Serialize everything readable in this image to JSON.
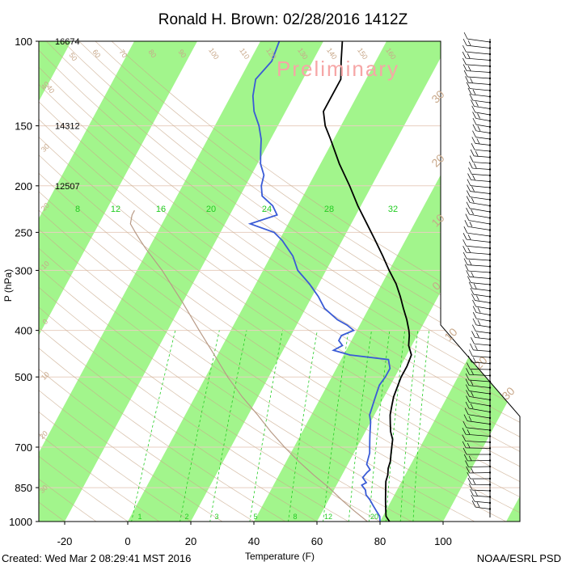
{
  "title": "Ronald H. Brown: 02/28/2016 1412Z",
  "footer_left": "Created: Wed Mar  2 08:29:41 MST 2016",
  "footer_right": "NOAA/ESRL PSD",
  "watermark": "Preliminary",
  "chart_data": {
    "type": "line",
    "subtype": "skew-t log-p sounding",
    "xlabel": "Temperature (F)",
    "ylabel": "P (hPa)",
    "x_ticks": [
      "-20",
      "0",
      "20",
      "40",
      "60",
      "80",
      "100"
    ],
    "y_ticks": [
      "100",
      "150",
      "200",
      "250",
      "300",
      "400",
      "500",
      "700",
      "850",
      "1000"
    ],
    "xlim_at_1000hPa": [
      -29,
      133
    ],
    "ylim": [
      1000,
      100
    ],
    "y_scale": "log",
    "height_labels": [
      {
        "pressure": 100,
        "text": "16674"
      },
      {
        "pressure": 150,
        "text": "14312"
      },
      {
        "pressure": 200,
        "text": "12507"
      }
    ],
    "mixing_ratio_labels_top": [
      "8",
      "12",
      "16",
      "20",
      "24",
      "28",
      "32"
    ],
    "mixing_ratio_labels_bottom": [
      "1",
      "2",
      "3",
      "5",
      "8",
      "12",
      "20"
    ],
    "adiabat_labels_top": [
      "40",
      "50",
      "60",
      "70",
      "80",
      "90",
      "100",
      "110",
      "120",
      "130",
      "140",
      "150",
      "160"
    ],
    "right_labels": [
      "30",
      "20",
      "10",
      "0",
      "10",
      "20",
      "30"
    ],
    "left_labels": [
      "40",
      "30",
      "20",
      "10",
      "0",
      "10",
      "20",
      "30"
    ],
    "colors": {
      "temperature": "#000000",
      "dewpoint": "#3a5bd6",
      "isotherm_band": "#a2f58c",
      "dry_adiabat": "#c8a88a",
      "mixing_ratio": "#22cc22",
      "watermark": "#f6a6a6"
    },
    "series": [
      {
        "name": "Temperature",
        "points": [
          [
            1000,
            83
          ],
          [
            975,
            81
          ],
          [
            950,
            80
          ],
          [
            925,
            79
          ],
          [
            900,
            78
          ],
          [
            875,
            77
          ],
          [
            850,
            76
          ],
          [
            825,
            75
          ],
          [
            800,
            74.5
          ],
          [
            775,
            73.5
          ],
          [
            750,
            73
          ],
          [
            725,
            72
          ],
          [
            700,
            71
          ],
          [
            675,
            70
          ],
          [
            650,
            68
          ],
          [
            625,
            66.5
          ],
          [
            600,
            65
          ],
          [
            575,
            64
          ],
          [
            550,
            63
          ],
          [
            525,
            62.5
          ],
          [
            500,
            62
          ],
          [
            475,
            62
          ],
          [
            450,
            61.5
          ],
          [
            430,
            59
          ],
          [
            410,
            57.5
          ],
          [
            400,
            56.5
          ],
          [
            380,
            54
          ],
          [
            360,
            51
          ],
          [
            340,
            48
          ],
          [
            320,
            44.5
          ],
          [
            300,
            40
          ],
          [
            280,
            35.5
          ],
          [
            260,
            30.5
          ],
          [
            240,
            25
          ],
          [
            220,
            19
          ],
          [
            200,
            13
          ],
          [
            180,
            6
          ],
          [
            160,
            -1
          ],
          [
            150,
            -5
          ],
          [
            140,
            -8
          ],
          [
            130,
            -8
          ],
          [
            120,
            -8
          ],
          [
            110,
            -11
          ],
          [
            100,
            -14
          ]
        ]
      },
      {
        "name": "Dewpoint",
        "points": [
          [
            1000,
            80
          ],
          [
            975,
            79
          ],
          [
            950,
            77
          ],
          [
            925,
            75
          ],
          [
            900,
            73
          ],
          [
            880,
            71
          ],
          [
            860,
            70
          ],
          [
            850,
            69
          ],
          [
            840,
            68
          ],
          [
            830,
            69
          ],
          [
            810,
            67
          ],
          [
            790,
            67.5
          ],
          [
            780,
            68
          ],
          [
            760,
            66
          ],
          [
            740,
            65.5
          ],
          [
            720,
            65
          ],
          [
            700,
            64
          ],
          [
            680,
            63
          ],
          [
            660,
            62
          ],
          [
            640,
            61
          ],
          [
            620,
            60
          ],
          [
            600,
            58.5
          ],
          [
            580,
            58
          ],
          [
            560,
            57.5
          ],
          [
            540,
            57
          ],
          [
            520,
            56.5
          ],
          [
            500,
            57
          ],
          [
            480,
            57
          ],
          [
            460,
            55
          ],
          [
            450,
            42
          ],
          [
            440,
            36
          ],
          [
            430,
            38
          ],
          [
            420,
            36
          ],
          [
            410,
            36
          ],
          [
            400,
            39
          ],
          [
            390,
            36
          ],
          [
            380,
            32
          ],
          [
            360,
            26
          ],
          [
            340,
            22
          ],
          [
            320,
            17
          ],
          [
            300,
            11
          ],
          [
            280,
            7
          ],
          [
            260,
            1
          ],
          [
            250,
            -3
          ],
          [
            240,
            -12
          ],
          [
            230,
            -5
          ],
          [
            220,
            -8
          ],
          [
            210,
            -13
          ],
          [
            200,
            -15
          ],
          [
            190,
            -16
          ],
          [
            180,
            -19
          ],
          [
            170,
            -21
          ],
          [
            160,
            -23
          ],
          [
            150,
            -26
          ],
          [
            140,
            -30
          ],
          [
            130,
            -33
          ],
          [
            120,
            -35
          ],
          [
            110,
            -33
          ],
          [
            100,
            -34
          ]
        ]
      },
      {
        "name": "Parcel",
        "points": [
          [
            1000,
            76
          ],
          [
            950,
            70
          ],
          [
            900,
            64
          ],
          [
            850,
            58
          ],
          [
            800,
            51
          ],
          [
            750,
            44
          ],
          [
            700,
            37
          ],
          [
            650,
            30
          ],
          [
            600,
            23
          ],
          [
            550,
            15
          ],
          [
            500,
            7
          ],
          [
            450,
            -1
          ],
          [
            400,
            -10
          ],
          [
            350,
            -20
          ],
          [
            300,
            -32
          ],
          [
            270,
            -41
          ],
          [
            260,
            -44
          ],
          [
            250,
            -47
          ],
          [
            240,
            -50
          ],
          [
            230,
            -51
          ],
          [
            225,
            -51
          ]
        ]
      }
    ]
  }
}
